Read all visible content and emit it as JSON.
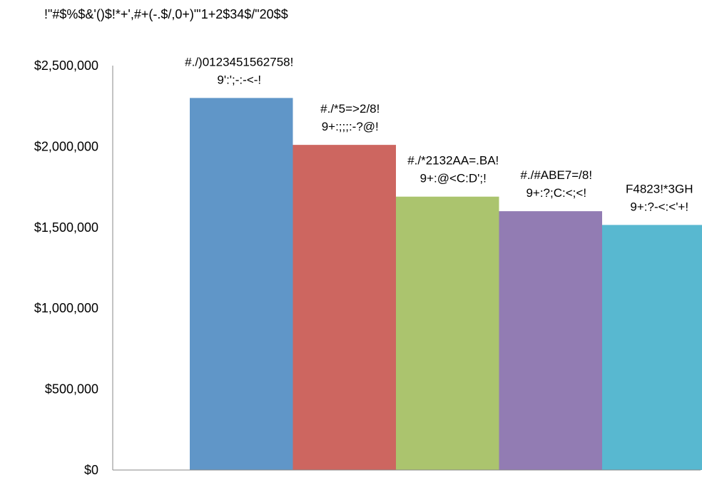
{
  "chart_data": {
    "type": "bar",
    "title": "!\"#$%$&'()$!*+',#+(-.$/,0+)\"'1+2$34$/\"20$$",
    "xlabel": "",
    "ylabel": "",
    "ylim": [
      0,
      2500000
    ],
    "yticks": [
      "$0",
      "$500,000",
      "$1,000,000",
      "$1,500,000",
      "$2,000,000",
      "$2,500,000"
    ],
    "ytick_values": [
      0,
      500000,
      1000000,
      1500000,
      2000000,
      2500000
    ],
    "grid": false,
    "legend": "none",
    "categories": [
      "#./)0123451562758!",
      "#./*5=>2/8!",
      "#./*2132AA=.BA!",
      "#./#ABE7=/8!",
      "F4823!*3GH"
    ],
    "values": [
      2300000,
      2010000,
      1690000,
      1600000,
      1515000
    ],
    "data_labels": [
      "9':';-:-<-!",
      "9+:;;;:-?@!",
      "9+:@<C:D';!",
      "9+:?;C:<;<!",
      "9+:?-<:<'+!"
    ],
    "colors": [
      "#6096c8",
      "#cd6660",
      "#abc46e",
      "#927cb3",
      "#58b8d0"
    ]
  }
}
